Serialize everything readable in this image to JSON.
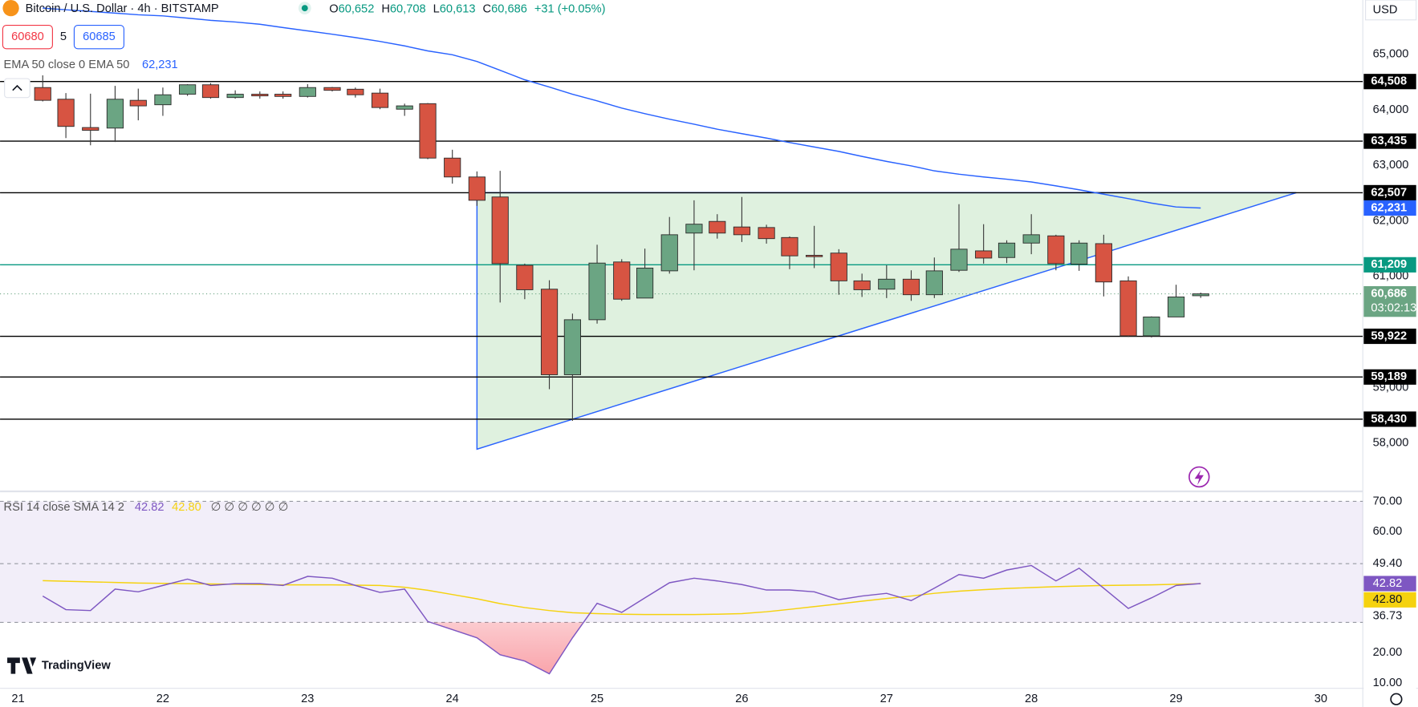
{
  "header": {
    "title": "Bitcoin / U.S. Dollar · 4h · BITSTAMP",
    "ohlc": [
      {
        "key": "O",
        "value": "60,652"
      },
      {
        "key": "H",
        "value": "60,708"
      },
      {
        "key": "L",
        "value": "60,613"
      },
      {
        "key": "C",
        "value": "60,686"
      }
    ],
    "change": "+31 (+0.05%)",
    "sell": "60680",
    "spread": "5",
    "buy": "60685",
    "currency": "USD",
    "logo": "TradingView"
  },
  "chart_data": [
    {
      "type": "candlestick",
      "x": [
        21.17,
        21.33,
        21.5,
        21.67,
        21.83,
        22,
        22.17,
        22.33,
        22.5,
        22.67,
        22.83,
        23,
        23.17,
        23.33,
        23.5,
        23.67,
        23.83,
        24,
        24.17,
        24.33,
        24.5,
        24.67,
        24.83,
        25,
        25.17,
        25.33,
        25.5,
        25.67,
        25.83,
        26,
        26.17,
        26.33,
        26.5,
        26.67,
        26.83,
        27,
        27.17,
        27.33,
        27.5,
        27.67,
        27.83,
        28,
        28.17,
        28.33,
        28.5,
        28.67,
        28.83,
        29,
        29.17
      ],
      "open": [
        64400,
        64190,
        63680,
        63670,
        64170,
        64090,
        64280,
        64450,
        64220,
        64280,
        64280,
        64240,
        64400,
        64370,
        64300,
        64010,
        64110,
        63130,
        62790,
        62430,
        61200,
        60770,
        59230,
        60220,
        61260,
        60610,
        61100,
        61780,
        61990,
        61890,
        61880,
        61700,
        61380,
        61420,
        60920,
        60770,
        60950,
        60670,
        61110,
        61460,
        61340,
        61600,
        61730,
        61220,
        61590,
        60920,
        59930,
        60270,
        60652
      ],
      "high": [
        64620,
        64300,
        64290,
        64430,
        64380,
        64400,
        64460,
        64480,
        64350,
        64330,
        64330,
        64460,
        64410,
        64400,
        64380,
        64110,
        64120,
        63280,
        62890,
        62900,
        61230,
        60930,
        60330,
        61570,
        61310,
        61500,
        62070,
        62370,
        62120,
        62430,
        61930,
        61720,
        61910,
        61490,
        61050,
        61200,
        61110,
        61340,
        62300,
        61940,
        61650,
        62120,
        61750,
        61650,
        61750,
        61000,
        60280,
        60850,
        60708
      ],
      "low": [
        64150,
        63490,
        63360,
        63420,
        63810,
        63890,
        64250,
        64200,
        64200,
        64200,
        64200,
        64220,
        64330,
        64220,
        64010,
        63890,
        63110,
        62670,
        62270,
        60530,
        60590,
        58970,
        58400,
        60150,
        60560,
        60610,
        61050,
        61110,
        61680,
        61620,
        61590,
        61130,
        61150,
        60670,
        60630,
        60610,
        60560,
        60610,
        61080,
        61230,
        61240,
        61400,
        61110,
        61100,
        60640,
        59910,
        59900,
        60270,
        60613
      ],
      "close": [
        64170,
        63700,
        63630,
        64190,
        64070,
        64270,
        64450,
        64220,
        64280,
        64250,
        64240,
        64400,
        64350,
        64270,
        64040,
        64070,
        63130,
        62790,
        62370,
        61230,
        60760,
        59230,
        60220,
        61240,
        60590,
        61150,
        61750,
        61940,
        61780,
        61750,
        61680,
        61370,
        61360,
        60920,
        60760,
        60950,
        60670,
        61100,
        61490,
        61330,
        61600,
        61750,
        61230,
        61600,
        60900,
        59930,
        60270,
        60630,
        60686
      ],
      "up_color": "#6ba583",
      "down_color": "#d75442",
      "xlim": [
        20.875,
        30.29
      ],
      "xticks": [
        21,
        22,
        23,
        24,
        25,
        26,
        27,
        28,
        29,
        30
      ],
      "ylim": [
        57146,
        65976
      ],
      "yticks": [
        {
          "value": 65000,
          "label": "65,000"
        },
        {
          "value": 64000,
          "label": "64,000"
        },
        {
          "value": 63000,
          "label": "63,000"
        },
        {
          "value": 62000,
          "label": "62,000"
        },
        {
          "value": 61000,
          "label": "61,000"
        },
        {
          "value": 59000,
          "label": "59,000"
        },
        {
          "value": 58000,
          "label": "58,000"
        }
      ],
      "ema": {
        "name": "EMA 50 close 0 EMA 50",
        "color": "#2962ff",
        "last_label": "62,231",
        "values": [
          65830,
          65800,
          65770,
          65740,
          65710,
          65690,
          65650,
          65610,
          65580,
          65540,
          65480,
          65420,
          65360,
          65300,
          65230,
          65150,
          65060,
          64990,
          64870,
          64710,
          64540,
          64410,
          64280,
          64160,
          64030,
          63930,
          63830,
          63740,
          63650,
          63570,
          63490,
          63410,
          63330,
          63250,
          63160,
          63070,
          62990,
          62900,
          62840,
          62790,
          62750,
          62700,
          62630,
          62560,
          62480,
          62400,
          62320,
          62250,
          62231
        ]
      },
      "levels": [
        {
          "value": 64508,
          "label": "64,508",
          "color": "#000000"
        },
        {
          "value": 63435,
          "label": "63,435",
          "color": "#000000"
        },
        {
          "value": 62507,
          "label": "62,507",
          "color": "#000000"
        },
        {
          "value": 61209,
          "label": "61,209",
          "color": "#089981"
        },
        {
          "value": 59922,
          "label": "59,922",
          "color": "#000000"
        },
        {
          "value": 59189,
          "label": "59,189",
          "color": "#000000"
        },
        {
          "value": 58430,
          "label": "58,430",
          "color": "#000000"
        }
      ],
      "triangle": {
        "x": [
          24.17,
          24.17,
          29.83
        ],
        "y": [
          57890,
          62507,
          62507
        ],
        "color": "#2962ff"
      },
      "last_price": {
        "value": 60686,
        "label": "60,686",
        "countdown": "03:02:13",
        "color": "#6ba583"
      }
    },
    {
      "type": "line",
      "title": "RSI 14 close SMA 14 2",
      "placeholders": "∅ ∅ ∅ ∅ ∅ ∅",
      "x": [
        21.17,
        21.33,
        21.5,
        21.67,
        21.83,
        22,
        22.17,
        22.33,
        22.5,
        22.67,
        22.83,
        23,
        23.17,
        23.33,
        23.5,
        23.67,
        23.83,
        24,
        24.17,
        24.33,
        24.5,
        24.67,
        24.83,
        25,
        25.17,
        25.33,
        25.5,
        25.67,
        25.83,
        26,
        26.17,
        26.33,
        26.5,
        26.67,
        26.83,
        27,
        27.17,
        27.33,
        27.5,
        27.67,
        27.83,
        28,
        28.17,
        28.33,
        28.5,
        28.67,
        28.83,
        29,
        29.17
      ],
      "series": [
        {
          "color": "#7e57c2",
          "last_label": "42.82",
          "values": [
            38.7,
            34.2,
            33.9,
            41.0,
            40.1,
            42.2,
            44.3,
            42.2,
            42.8,
            42.8,
            42.2,
            45.2,
            44.6,
            42.2,
            39.9,
            41.0,
            30.3,
            27.6,
            24.9,
            19.3,
            17.2,
            13.0,
            24.9,
            36.3,
            33.3,
            38.1,
            43.1,
            44.6,
            43.7,
            42.5,
            40.7,
            40.7,
            40.1,
            37.5,
            38.7,
            39.6,
            37.2,
            41.3,
            45.8,
            44.6,
            47.3,
            48.8,
            43.7,
            47.9,
            41.3,
            34.6,
            38.1,
            42.2,
            42.82
          ]
        },
        {
          "color": "#f5d20f",
          "last_label": "42.80",
          "values": [
            43.8,
            43.6,
            43.4,
            43.2,
            43.0,
            42.9,
            42.8,
            42.7,
            42.6,
            42.5,
            42.4,
            42.4,
            42.4,
            42.3,
            42.2,
            41.6,
            40.6,
            39.2,
            37.8,
            36.2,
            34.9,
            33.9,
            33.2,
            32.9,
            32.7,
            32.6,
            32.6,
            32.6,
            32.7,
            32.9,
            33.5,
            34.3,
            35.2,
            36.1,
            37.0,
            37.9,
            38.7,
            39.6,
            40.3,
            40.8,
            41.2,
            41.5,
            41.8,
            42.0,
            42.2,
            42.3,
            42.4,
            42.6,
            42.8
          ]
        }
      ],
      "ylim": [
        8.2,
        73
      ],
      "yticks": [
        {
          "value": 70,
          "label": "70.00"
        },
        {
          "value": 60,
          "label": "60.00"
        },
        {
          "value": 49.4,
          "label": "49.40"
        },
        {
          "value": 36.73,
          "label": "36.73"
        },
        {
          "value": 20,
          "label": "20.00"
        },
        {
          "value": 10,
          "label": "10.00"
        }
      ],
      "band": [
        30,
        70
      ]
    }
  ]
}
